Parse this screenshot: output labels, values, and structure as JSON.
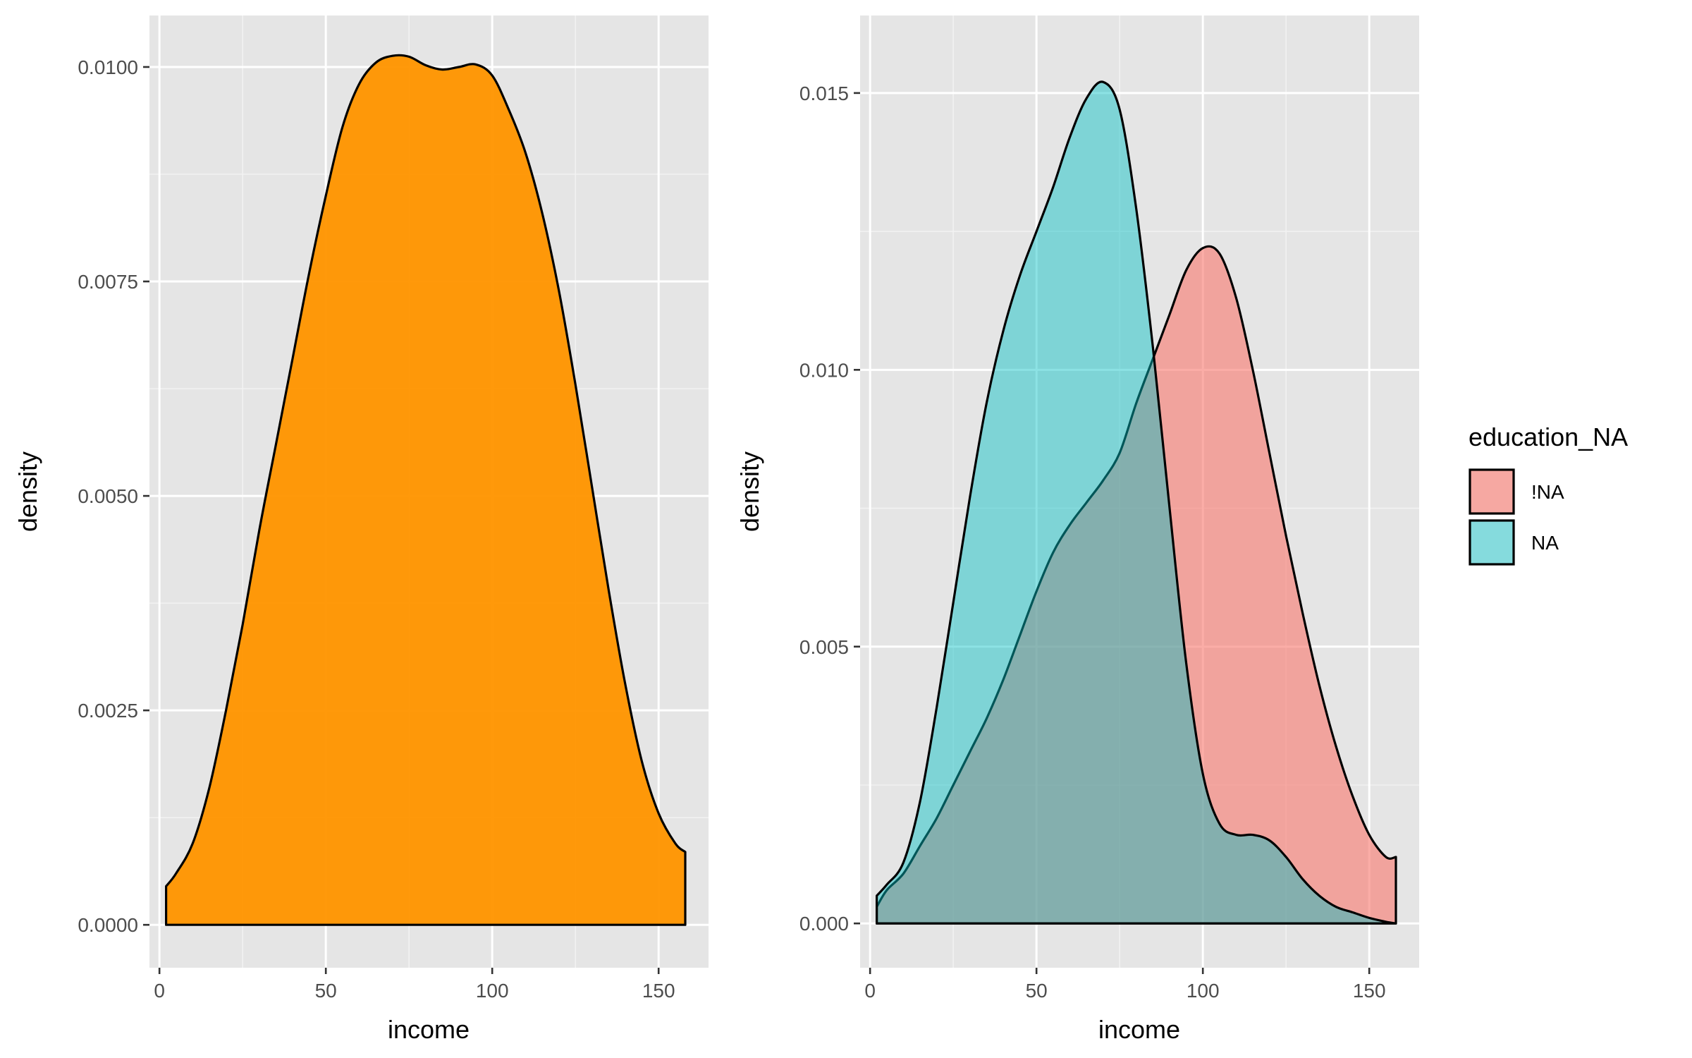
{
  "chart_data": [
    {
      "type": "area",
      "title": "",
      "xlabel": "income",
      "ylabel": "density",
      "xlim": [
        -3,
        165
      ],
      "ylim": [
        -0.0005,
        0.0106
      ],
      "x_ticks": [
        0,
        50,
        100,
        150
      ],
      "x_tick_labels": [
        "0",
        "50",
        "100",
        "150"
      ],
      "y_ticks": [
        0,
        0.0025,
        0.005,
        0.0075,
        0.01
      ],
      "y_tick_labels": [
        "0.0000",
        "0.0025",
        "0.0050",
        "0.0075",
        "0.0100"
      ],
      "grid": true,
      "series": [
        {
          "fill": "#FF9500",
          "opacity": 0.96,
          "x": [
            2,
            5,
            10,
            15,
            20,
            25,
            30,
            35,
            40,
            45,
            50,
            55,
            60,
            65,
            70,
            75,
            80,
            85,
            90,
            95,
            100,
            105,
            110,
            115,
            120,
            125,
            130,
            135,
            140,
            145,
            150,
            155,
            158
          ],
          "y": [
            0.00045,
            0.0006,
            0.00095,
            0.0016,
            0.0025,
            0.0035,
            0.0046,
            0.0056,
            0.0066,
            0.0076,
            0.0085,
            0.0093,
            0.0098,
            0.01005,
            0.01013,
            0.01012,
            0.01002,
            0.00997,
            0.01,
            0.01003,
            0.0099,
            0.0095,
            0.009,
            0.0083,
            0.0074,
            0.0063,
            0.0051,
            0.0039,
            0.0028,
            0.0019,
            0.0013,
            0.00095,
            0.00085
          ]
        }
      ]
    },
    {
      "type": "area",
      "title": "",
      "xlabel": "income",
      "ylabel": "density",
      "xlim": [
        -3,
        165
      ],
      "ylim": [
        -0.0008,
        0.0164
      ],
      "x_ticks": [
        0,
        50,
        100,
        150
      ],
      "x_tick_labels": [
        "0",
        "50",
        "100",
        "150"
      ],
      "y_ticks": [
        0,
        0.005,
        0.01,
        0.015
      ],
      "y_tick_labels": [
        "0.000",
        "0.005",
        "0.010",
        "0.015"
      ],
      "grid": true,
      "legend": {
        "title": "education_NA",
        "position": "right",
        "entries": [
          {
            "label": "!NA",
            "color": "#F8766D"
          },
          {
            "label": "NA",
            "color": "#00BFC4"
          }
        ]
      },
      "series": [
        {
          "name": "!NA",
          "fill": "#F8766D",
          "opacity": 0.6,
          "x": [
            2,
            5,
            10,
            15,
            20,
            25,
            30,
            35,
            40,
            45,
            50,
            55,
            60,
            65,
            70,
            75,
            80,
            85,
            90,
            95,
            100,
            105,
            110,
            115,
            120,
            125,
            130,
            135,
            140,
            145,
            150,
            155,
            158
          ],
          "y": [
            0.0003,
            0.0006,
            0.0009,
            0.0014,
            0.0019,
            0.0025,
            0.0031,
            0.0037,
            0.0044,
            0.0052,
            0.006,
            0.0067,
            0.0072,
            0.0076,
            0.008,
            0.0085,
            0.0094,
            0.0102,
            0.011,
            0.0118,
            0.0122,
            0.0121,
            0.0113,
            0.01,
            0.0085,
            0.007,
            0.0056,
            0.0043,
            0.0032,
            0.0023,
            0.0016,
            0.0012,
            0.0012
          ]
        },
        {
          "name": "NA",
          "fill": "#00BFC4",
          "opacity": 0.45,
          "x": [
            2,
            5,
            10,
            15,
            20,
            25,
            30,
            35,
            40,
            45,
            50,
            55,
            60,
            65,
            70,
            75,
            80,
            85,
            90,
            95,
            100,
            105,
            110,
            115,
            120,
            125,
            130,
            135,
            140,
            145,
            150,
            155,
            158
          ],
          "y": [
            0.0005,
            0.0007,
            0.0011,
            0.0022,
            0.0039,
            0.0058,
            0.0077,
            0.0094,
            0.0107,
            0.0117,
            0.0125,
            0.0133,
            0.0142,
            0.0149,
            0.0152,
            0.0147,
            0.0129,
            0.0104,
            0.0075,
            0.0047,
            0.0027,
            0.0018,
            0.0016,
            0.0016,
            0.0015,
            0.0012,
            0.0008,
            0.0005,
            0.0003,
            0.0002,
            0.0001,
            3e-05,
            0
          ]
        }
      ]
    }
  ]
}
